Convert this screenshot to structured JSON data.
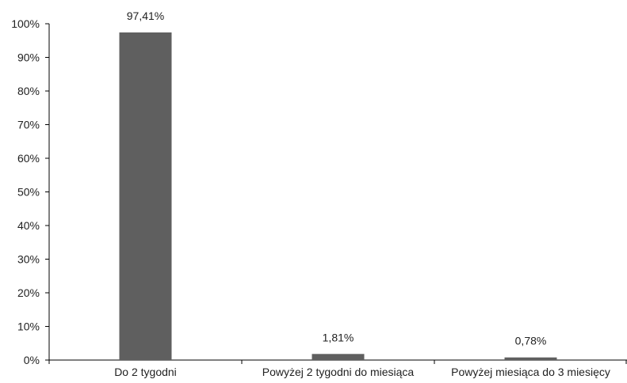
{
  "chart_data": {
    "type": "bar",
    "categories": [
      "Do 2 tygodni",
      "Powyżej 2 tygodni do miesiąca",
      "Powyżej miesiąca do 3 miesięcy"
    ],
    "values": [
      97.41,
      1.81,
      0.78
    ],
    "data_labels": [
      "97,41%",
      "1,81%",
      "0,78%"
    ],
    "yticks": [
      0,
      10,
      20,
      30,
      40,
      50,
      60,
      70,
      80,
      90,
      100
    ],
    "ytick_labels": [
      "0%",
      "10%",
      "20%",
      "30%",
      "40%",
      "50%",
      "60%",
      "70%",
      "80%",
      "90%",
      "100%"
    ],
    "ylim": [
      0,
      100
    ],
    "title": "",
    "xlabel": "",
    "ylabel": "",
    "grid": false,
    "bar_color": "#5f5f5f",
    "axis_color": "#000000"
  }
}
